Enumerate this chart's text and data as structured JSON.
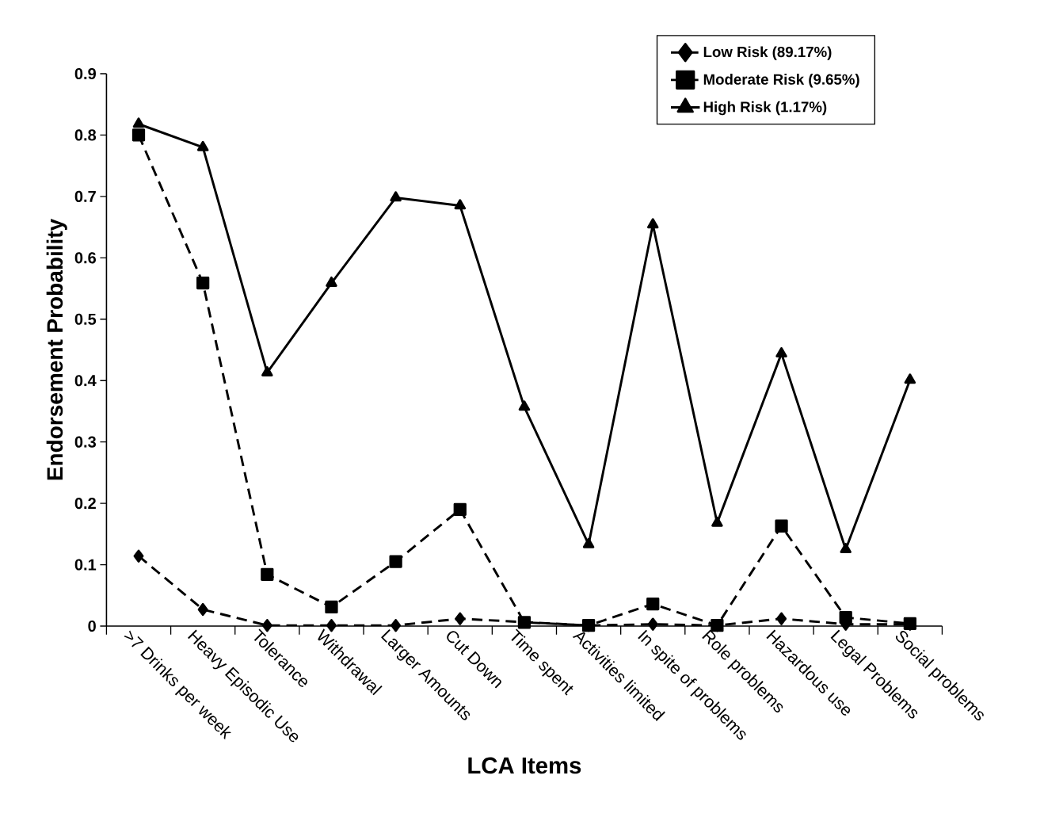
{
  "chart_data": {
    "type": "line",
    "xlabel": "LCA Items",
    "ylabel": "Endorsement Probability",
    "categories": [
      ">7 Drinks per week",
      "Heavy Episodic Use",
      "Tolerance",
      "Withdrawal",
      "Larger Amounts",
      "Cut Down",
      "Time spent",
      "Activities limited",
      "In spite of problems",
      "Role problems",
      "Hazardous use",
      "Legal Problems",
      "Social problems"
    ],
    "series": [
      {
        "name": "Low Risk (89.17%)",
        "color": "#000000",
        "marker": "diamond",
        "line_style": "dashed",
        "values": [
          0.114,
          0.027,
          0.001,
          0.001,
          0.001,
          0.012,
          null,
          0.001,
          0.003,
          0.001,
          0.012,
          0.003,
          0.003
        ]
      },
      {
        "name": "Moderate Risk (9.65%)",
        "color": "#000000",
        "marker": "square",
        "line_style": "dashed",
        "values": [
          0.8,
          0.559,
          0.084,
          0.031,
          0.105,
          0.19,
          0.006,
          0.001,
          0.036,
          0.001,
          0.163,
          0.014,
          0.004
        ]
      },
      {
        "name": "High Risk (1.17%)",
        "color": "#000000",
        "marker": "triangle",
        "line_style": "solid",
        "values": [
          0.818,
          0.78,
          0.413,
          0.559,
          0.698,
          0.685,
          0.357,
          0.133,
          0.654,
          0.168,
          0.444,
          0.125,
          0.401
        ]
      }
    ],
    "ylim": [
      0,
      0.9
    ],
    "yticks": [
      0,
      0.1,
      0.2,
      0.3,
      0.4,
      0.5,
      0.6,
      0.7,
      0.8,
      0.9
    ],
    "grid": false,
    "legend": "top right"
  }
}
